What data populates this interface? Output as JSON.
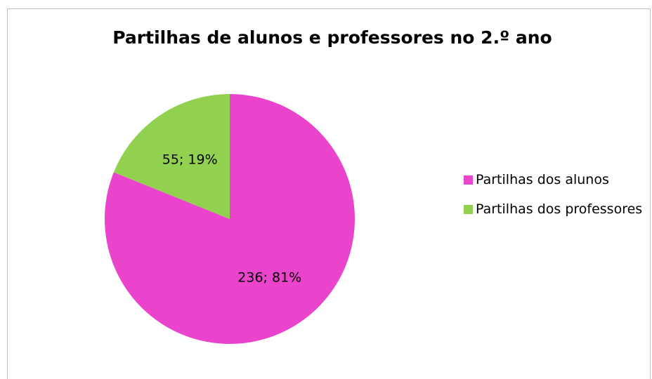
{
  "chart_data": {
    "type": "pie",
    "title": "Partilhas de alunos e professores no 2.º ano",
    "series": [
      {
        "name": "Partilhas dos alunos",
        "color": "#ea44cc"
      },
      {
        "name": "Partilhas dos professores",
        "color": "#92d050"
      }
    ],
    "values": [
      236,
      55
    ],
    "value_labels": [
      "236; 81%",
      "55; 19%"
    ],
    "legend": "right"
  }
}
